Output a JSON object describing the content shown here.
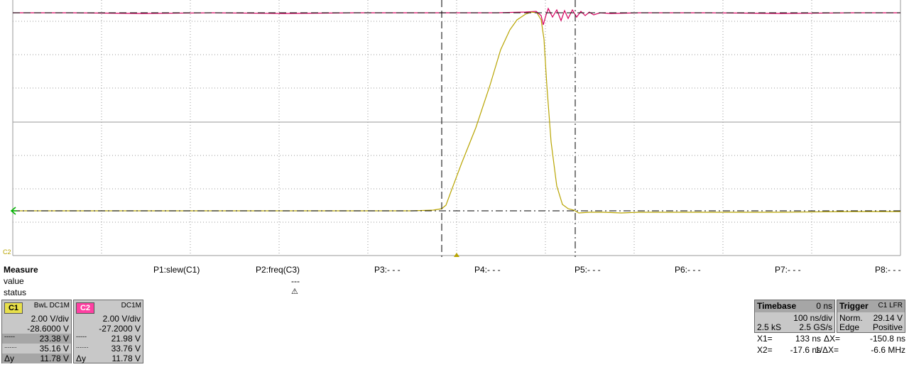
{
  "colors": {
    "c1": "#b8a400",
    "c2": "#d6005f",
    "c1_tag": "#e8e04a",
    "c2_tag": "#ff3fa2",
    "cursor": "#000000",
    "grid": "#9a9a9a",
    "ground_marker": "#00b000"
  },
  "scope": {
    "c2_marker_label": "C2",
    "grid": true,
    "h_divisions": 10,
    "v_divisions": 8,
    "cursor_labels": {
      "trigger_marker": "▲"
    }
  },
  "measure": {
    "title": "Measure",
    "row_value": "value",
    "row_status": "status",
    "params": [
      {
        "label": "P1:slew(C1)",
        "value": "",
        "status": ""
      },
      {
        "label": "P2:freq(C3)",
        "value": "---",
        "status": "⚠"
      },
      {
        "label": "P3:- - -",
        "value": "",
        "status": ""
      },
      {
        "label": "P4:- - -",
        "value": "",
        "status": ""
      },
      {
        "label": "P5:- - -",
        "value": "",
        "status": ""
      },
      {
        "label": "P6:- - -",
        "value": "",
        "status": ""
      },
      {
        "label": "P7:- - -",
        "value": "",
        "status": ""
      },
      {
        "label": "P8:- - -",
        "value": "",
        "status": ""
      }
    ]
  },
  "c1": {
    "tag": "C1",
    "coupling": "BwL DC1M",
    "scale": "2.00 V/div",
    "offset": "-28.6000 V",
    "cursor1_sym": "-----",
    "cursor1": "23.38 V",
    "cursor2_sym": ".......",
    "cursor2": "35.16 V",
    "delta_sym": "Δy",
    "delta": "11.78 V"
  },
  "c2": {
    "tag": "C2",
    "coupling": "DC1M",
    "scale": "2.00 V/div",
    "offset": "-27.2000 V",
    "cursor1_sym": "-----",
    "cursor1": "21.98 V",
    "cursor2_sym": ".......",
    "cursor2": "33.76 V",
    "delta_sym": "Δy",
    "delta": "11.78 V"
  },
  "timebase": {
    "title": "Timebase",
    "delay": "0 ns",
    "scale": "100 ns/div",
    "samples": "2.5 kS",
    "rate": "2.5 GS/s"
  },
  "trigger": {
    "title": "Trigger",
    "source": "C1 LFR",
    "mode": "Norm.",
    "level": "29.14 V",
    "type": "Edge",
    "slope": "Positive"
  },
  "cursors": {
    "x1_label": "X1=",
    "x1": "133 ns",
    "dx_label": "ΔX=",
    "dx": "-150.8 ns",
    "x2_label": "X2=",
    "x2": "-17.6 ns",
    "inv_dx_label": "1/ΔX=",
    "inv_dx": "-6.6 MHz"
  }
}
